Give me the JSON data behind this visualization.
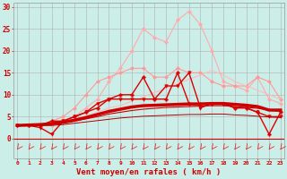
{
  "xlabel": "Vent moyen/en rafales ( km/h )",
  "background_color": "#cceee8",
  "grid_color": "#aaaaaa",
  "x": [
    0,
    1,
    2,
    3,
    4,
    5,
    6,
    7,
    8,
    9,
    10,
    11,
    12,
    13,
    14,
    15,
    16,
    17,
    18,
    19,
    20,
    21,
    22,
    23
  ],
  "lines": [
    {
      "y": [
        3,
        3,
        3,
        3,
        4,
        5,
        7,
        9,
        13,
        16,
        20,
        25,
        23,
        22,
        27,
        29,
        26,
        20,
        13,
        12,
        11,
        14,
        9,
        8
      ],
      "color": "#ffaaaa",
      "lw": 0.8,
      "marker": "D",
      "ms": 2.0
    },
    {
      "y": [
        3,
        3,
        3,
        4,
        5,
        7,
        10,
        13,
        14,
        15,
        16,
        16,
        14,
        14,
        16,
        15,
        15,
        13,
        12,
        12,
        12,
        14,
        13,
        9
      ],
      "color": "#ff9999",
      "lw": 0.8,
      "marker": "D",
      "ms": 2.0
    },
    {
      "y": [
        3,
        3,
        3,
        3.2,
        3.8,
        4.5,
        5.2,
        6,
        7,
        7.5,
        8.5,
        9.5,
        10.5,
        11.5,
        12.5,
        13.5,
        14.5,
        15.5,
        14.5,
        13,
        12,
        11,
        10,
        9
      ],
      "color": "#ffbbbb",
      "lw": 0.8,
      "marker": null,
      "ms": 0
    },
    {
      "y": [
        3,
        3,
        3,
        4,
        4,
        5,
        6,
        7,
        9,
        10,
        10,
        14,
        9,
        9,
        15,
        8,
        8,
        8,
        8,
        7,
        7,
        6,
        1,
        6
      ],
      "color": "#dd0000",
      "lw": 1.0,
      "marker": "P",
      "ms": 2.5
    },
    {
      "y": [
        3,
        3,
        2.5,
        1,
        4,
        5,
        6,
        8,
        9,
        9,
        9,
        9,
        9,
        12,
        12,
        15,
        7,
        8,
        8,
        7,
        7,
        6,
        5,
        5
      ],
      "color": "#dd0000",
      "lw": 1.0,
      "marker": "v",
      "ms": 2.5
    },
    {
      "y": [
        3,
        3.1,
        3.2,
        3.4,
        3.7,
        4.2,
        4.8,
        5.5,
        6.2,
        6.7,
        7.2,
        7.5,
        7.6,
        7.7,
        7.8,
        7.9,
        7.9,
        8.0,
        8.0,
        7.8,
        7.6,
        7.3,
        6.5,
        6.5
      ],
      "color": "#cc0000",
      "lw": 2.5,
      "marker": null,
      "ms": 0
    },
    {
      "y": [
        3,
        3.1,
        3.2,
        3.3,
        3.6,
        4.0,
        4.5,
        5.0,
        5.6,
        6.0,
        6.4,
        6.7,
        6.9,
        7.1,
        7.2,
        7.3,
        7.4,
        7.5,
        7.5,
        7.3,
        7.1,
        6.9,
        6.5,
        6.2
      ],
      "color": "#cc0000",
      "lw": 0.8,
      "marker": null,
      "ms": 0
    },
    {
      "y": [
        3,
        3,
        3,
        3,
        3.2,
        3.5,
        3.8,
        4.1,
        4.4,
        4.7,
        4.9,
        5.1,
        5.2,
        5.3,
        5.4,
        5.5,
        5.5,
        5.6,
        5.6,
        5.4,
        5.3,
        5.1,
        4.9,
        4.8
      ],
      "color": "#aa0000",
      "lw": 0.7,
      "marker": null,
      "ms": 0
    }
  ],
  "ylim": [
    -4.5,
    31
  ],
  "xlim": [
    -0.3,
    23.3
  ],
  "yticks": [
    0,
    5,
    10,
    15,
    20,
    25,
    30
  ],
  "figsize": [
    3.2,
    2.0
  ],
  "dpi": 100
}
